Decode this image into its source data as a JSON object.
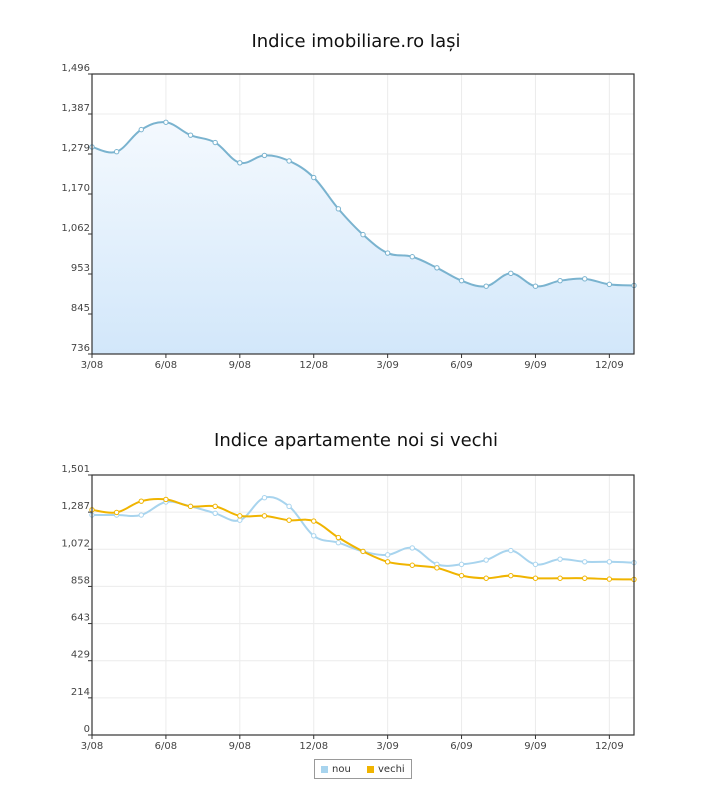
{
  "chart_data": [
    {
      "type": "area",
      "title": "Indice imobiliare.ro Iași",
      "x_ticks": [
        "3/08",
        "6/08",
        "9/08",
        "12/08",
        "3/09",
        "6/09",
        "9/09",
        "12/09"
      ],
      "y_ticks": [
        "1,496",
        "1,387",
        "1,279",
        "1,170",
        "1,062",
        "953",
        "845",
        "736"
      ],
      "ylim": [
        736,
        1496
      ],
      "grid": true,
      "x": [
        "3/08",
        "4/08",
        "5/08",
        "6/08",
        "7/08",
        "8/08",
        "9/08",
        "10/08",
        "11/08",
        "12/08",
        "1/09",
        "2/09",
        "3/09",
        "4/09",
        "5/09",
        "6/09",
        "7/09",
        "8/09",
        "9/09",
        "10/09",
        "11/09",
        "12/09",
        "1/10"
      ],
      "series": [
        {
          "values": [
            1298,
            1285,
            1345,
            1365,
            1330,
            1310,
            1255,
            1275,
            1260,
            1215,
            1130,
            1060,
            1010,
            1000,
            970,
            935,
            920,
            955,
            920,
            935,
            940,
            925,
            922
          ],
          "color": "#7ab3cf",
          "fill_top": "#f4f9fe",
          "fill_bottom": "#d2e7fa"
        }
      ]
    },
    {
      "type": "line",
      "title": "Indice apartamente noi si vechi",
      "x_ticks": [
        "3/08",
        "6/08",
        "9/08",
        "12/08",
        "3/09",
        "6/09",
        "9/09",
        "12/09"
      ],
      "y_ticks": [
        "1,501",
        "1,287",
        "1,072",
        "858",
        "643",
        "429",
        "214",
        "0"
      ],
      "ylim": [
        0,
        1501
      ],
      "grid": true,
      "x": [
        "3/08",
        "4/08",
        "5/08",
        "6/08",
        "7/08",
        "8/08",
        "9/08",
        "10/08",
        "11/08",
        "12/08",
        "1/09",
        "2/09",
        "3/09",
        "4/09",
        "5/09",
        "6/09",
        "7/09",
        "8/09",
        "9/09",
        "10/09",
        "11/09",
        "12/09",
        "1/10"
      ],
      "legend": "bottom",
      "series": [
        {
          "name": "nou",
          "values": [
            1270,
            1270,
            1270,
            1345,
            1320,
            1280,
            1240,
            1370,
            1320,
            1150,
            1110,
            1060,
            1040,
            1080,
            985,
            985,
            1010,
            1065,
            985,
            1015,
            1000,
            1000,
            995
          ],
          "color": "#a8d4ee"
        },
        {
          "name": "vechi",
          "values": [
            1300,
            1285,
            1350,
            1360,
            1320,
            1320,
            1265,
            1265,
            1240,
            1235,
            1140,
            1060,
            1000,
            980,
            965,
            920,
            905,
            920,
            905,
            905,
            905,
            900,
            898
          ],
          "color": "#f0b400"
        }
      ]
    }
  ]
}
